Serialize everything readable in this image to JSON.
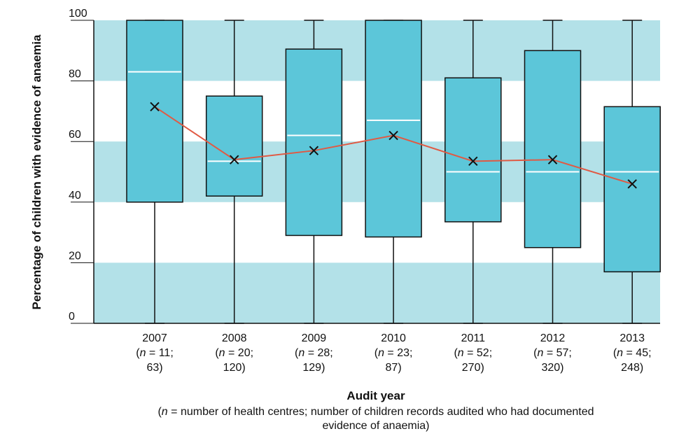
{
  "chart_data": {
    "type": "box",
    "ylabel": "Percentage of children with evidence of anaemia",
    "xlabel": "Audit year",
    "footnote": {
      "n_symbol": "n",
      "line1_rest": " = number of health centres; number of children records audited who had documented",
      "line2": "evidence of anaemia)"
    },
    "ylim": [
      0,
      100
    ],
    "yticks": [
      0,
      20,
      40,
      60,
      80,
      100
    ],
    "categories": [
      {
        "year": "2007",
        "n_centres": "11",
        "n_records": "63"
      },
      {
        "year": "2008",
        "n_centres": "20",
        "n_records": "120"
      },
      {
        "year": "2009",
        "n_centres": "28",
        "n_records": "129"
      },
      {
        "year": "2010",
        "n_centres": "23",
        "n_records": "87"
      },
      {
        "year": "2011",
        "n_centres": "52",
        "n_records": "270"
      },
      {
        "year": "2012",
        "n_centres": "57",
        "n_records": "320"
      },
      {
        "year": "2013",
        "n_centres": "45",
        "n_records": "248"
      }
    ],
    "boxes": [
      {
        "min": 0,
        "q1": 40,
        "median": 83,
        "q3": 100,
        "max": 100,
        "mean": 71.5
      },
      {
        "min": 0,
        "q1": 42,
        "median": 53.5,
        "q3": 75,
        "max": 100,
        "mean": 54
      },
      {
        "min": 0,
        "q1": 29,
        "median": 62,
        "q3": 90.5,
        "max": 100,
        "mean": 57
      },
      {
        "min": 0,
        "q1": 28.5,
        "median": 67,
        "q3": 100,
        "max": 100,
        "mean": 62
      },
      {
        "min": 0,
        "q1": 33.5,
        "median": 50,
        "q3": 81,
        "max": 100,
        "mean": 53.5
      },
      {
        "min": 0,
        "q1": 25,
        "median": 50,
        "q3": 90,
        "max": 100,
        "mean": 54
      },
      {
        "min": 0,
        "q1": 17,
        "median": 50,
        "q3": 71.5,
        "max": 100,
        "mean": 46
      }
    ],
    "grid": "alternating horizontal bands",
    "colors": {
      "band": "#b3e1e8",
      "box_fill": "#5cc6d9",
      "box_stroke": "#111111",
      "median": "#ffffff",
      "mean_line": "#e05a44",
      "mean_marker": "#111111"
    }
  }
}
